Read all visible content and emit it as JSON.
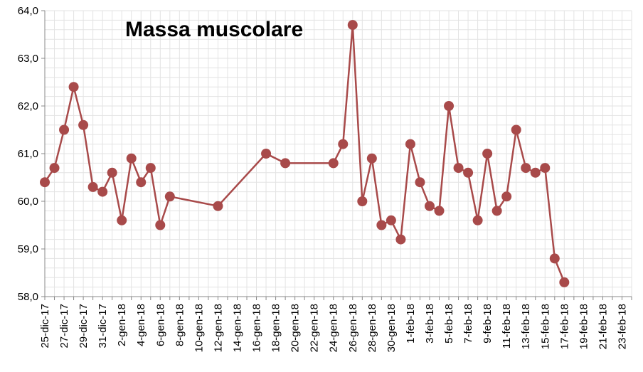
{
  "chart_data": {
    "type": "line",
    "title": "Massa muscolare",
    "xlabel": "",
    "ylabel": "",
    "ylim": [
      58.0,
      64.0
    ],
    "ytick_step": 1.0,
    "xlim": [
      "2017-12-25",
      "2018-02-24"
    ],
    "grid": true,
    "x_tick_labels": [
      "25-dic-17",
      "27-dic-17",
      "29-dic-17",
      "31-dic-17",
      "2-gen-18",
      "4-gen-18",
      "6-gen-18",
      "8-gen-18",
      "10-gen-18",
      "12-gen-18",
      "14-gen-18",
      "16-gen-18",
      "18-gen-18",
      "20-gen-18",
      "22-gen-18",
      "24-gen-18",
      "26-gen-18",
      "28-gen-18",
      "30-gen-18",
      "1-feb-18",
      "3-feb-18",
      "5-feb-18",
      "7-feb-18",
      "9-feb-18",
      "11-feb-18",
      "13-feb-18",
      "15-feb-18",
      "17-feb-18",
      "19-feb-18",
      "21-feb-18",
      "23-feb-18"
    ],
    "y_tick_labels": [
      "58,0",
      "59,0",
      "60,0",
      "61,0",
      "62,0",
      "63,0",
      "64,0"
    ],
    "colors": {
      "line": "#a84a4a",
      "marker": "#a84a4a"
    },
    "series": [
      {
        "points": [
          {
            "x": "2017-12-25",
            "y": 60.4
          },
          {
            "x": "2017-12-26",
            "y": 60.7
          },
          {
            "x": "2017-12-27",
            "y": 61.5
          },
          {
            "x": "2017-12-28",
            "y": 62.4
          },
          {
            "x": "2017-12-29",
            "y": 61.6
          },
          {
            "x": "2017-12-30",
            "y": 60.3
          },
          {
            "x": "2017-12-31",
            "y": 60.2
          },
          {
            "x": "2018-01-01",
            "y": 60.6
          },
          {
            "x": "2018-01-02",
            "y": 59.6
          },
          {
            "x": "2018-01-03",
            "y": 60.9
          },
          {
            "x": "2018-01-04",
            "y": 60.4
          },
          {
            "x": "2018-01-05",
            "y": 60.7
          },
          {
            "x": "2018-01-06",
            "y": 59.5
          },
          {
            "x": "2018-01-07",
            "y": 60.1
          },
          {
            "x": "2018-01-12",
            "y": 59.9
          },
          {
            "x": "2018-01-17",
            "y": 61.0
          },
          {
            "x": "2018-01-19",
            "y": 60.8
          },
          {
            "x": "2018-01-24",
            "y": 60.8
          },
          {
            "x": "2018-01-25",
            "y": 61.2
          },
          {
            "x": "2018-01-26",
            "y": 63.7
          },
          {
            "x": "2018-01-27",
            "y": 60.0
          },
          {
            "x": "2018-01-28",
            "y": 60.9
          },
          {
            "x": "2018-01-29",
            "y": 59.5
          },
          {
            "x": "2018-01-30",
            "y": 59.6
          },
          {
            "x": "2018-01-31",
            "y": 59.2
          },
          {
            "x": "2018-02-01",
            "y": 61.2
          },
          {
            "x": "2018-02-02",
            "y": 60.4
          },
          {
            "x": "2018-02-03",
            "y": 59.9
          },
          {
            "x": "2018-02-04",
            "y": 59.8
          },
          {
            "x": "2018-02-05",
            "y": 62.0
          },
          {
            "x": "2018-02-06",
            "y": 60.7
          },
          {
            "x": "2018-02-07",
            "y": 60.6
          },
          {
            "x": "2018-02-08",
            "y": 59.6
          },
          {
            "x": "2018-02-09",
            "y": 61.0
          },
          {
            "x": "2018-02-10",
            "y": 59.8
          },
          {
            "x": "2018-02-11",
            "y": 60.1
          },
          {
            "x": "2018-02-12",
            "y": 61.5
          },
          {
            "x": "2018-02-13",
            "y": 60.7
          },
          {
            "x": "2018-02-14",
            "y": 60.6
          },
          {
            "x": "2018-02-15",
            "y": 60.7
          },
          {
            "x": "2018-02-16",
            "y": 58.8
          },
          {
            "x": "2018-02-17",
            "y": 58.3
          }
        ]
      }
    ]
  }
}
